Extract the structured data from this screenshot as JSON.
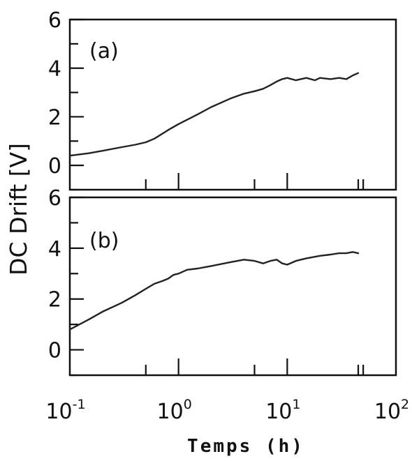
{
  "chart_data": {
    "type": "line",
    "ylabel": "DC Drift [V]",
    "xlabel": "Temps (h)",
    "xscale": "log",
    "xlim": [
      0.1,
      100
    ],
    "xticks": [
      {
        "base": "10",
        "exp": "-1"
      },
      {
        "base": "10",
        "exp": "0"
      },
      {
        "base": "10",
        "exp": "1"
      },
      {
        "base": "10",
        "exp": "2"
      }
    ],
    "panels": [
      {
        "label": "(a)",
        "ylim": [
          -1,
          6
        ],
        "yticks": [
          "0",
          "2",
          "4",
          "6"
        ],
        "x": [
          0.1,
          0.15,
          0.2,
          0.3,
          0.4,
          0.5,
          0.6,
          0.8,
          1.0,
          1.5,
          2,
          3,
          4,
          5,
          6,
          7,
          8,
          9,
          10,
          12,
          15,
          18,
          20,
          25,
          30,
          35,
          40,
          45
        ],
        "y": [
          0.4,
          0.5,
          0.6,
          0.75,
          0.85,
          0.95,
          1.1,
          1.45,
          1.7,
          2.1,
          2.4,
          2.75,
          2.95,
          3.05,
          3.15,
          3.3,
          3.45,
          3.55,
          3.6,
          3.5,
          3.6,
          3.5,
          3.6,
          3.55,
          3.6,
          3.55,
          3.7,
          3.8
        ]
      },
      {
        "label": "(b)",
        "ylim": [
          -1,
          6
        ],
        "yticks": [
          "0",
          "2",
          "4",
          "6"
        ],
        "x": [
          0.1,
          0.15,
          0.2,
          0.3,
          0.4,
          0.5,
          0.6,
          0.7,
          0.8,
          0.9,
          1.0,
          1.2,
          1.5,
          2,
          3,
          4,
          5,
          6,
          7,
          8,
          9,
          10,
          12,
          15,
          20,
          25,
          30,
          35,
          40,
          45
        ],
        "y": [
          0.8,
          1.2,
          1.5,
          1.85,
          2.15,
          2.4,
          2.6,
          2.7,
          2.8,
          2.95,
          3.0,
          3.15,
          3.2,
          3.3,
          3.45,
          3.55,
          3.5,
          3.4,
          3.5,
          3.55,
          3.4,
          3.35,
          3.5,
          3.6,
          3.7,
          3.75,
          3.8,
          3.8,
          3.85,
          3.8
        ]
      }
    ]
  }
}
